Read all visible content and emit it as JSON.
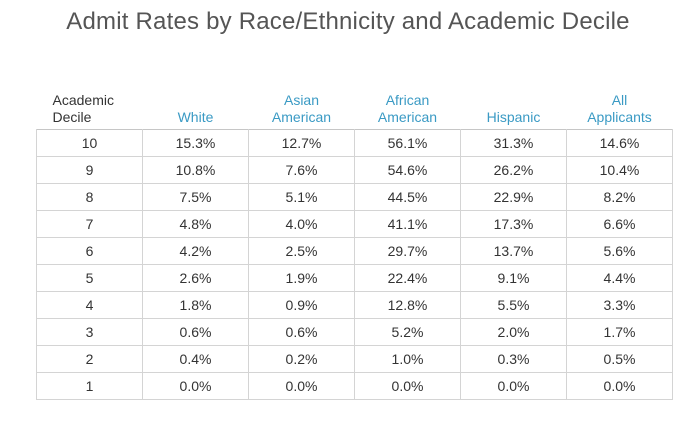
{
  "title": "Admit Rates by Race/Ethnicity and Academic Decile",
  "chart_data": {
    "type": "table",
    "title": "Admit Rates by Race/Ethnicity and Academic Decile",
    "columns": [
      {
        "line1": "Academic",
        "line2": "Decile"
      },
      {
        "line1": "",
        "line2": "White"
      },
      {
        "line1": "Asian",
        "line2": "American"
      },
      {
        "line1": "African",
        "line2": "American"
      },
      {
        "line1": "",
        "line2": "Hispanic"
      },
      {
        "line1": "All",
        "line2": "Applicants"
      }
    ],
    "rows": [
      [
        "10",
        "15.3%",
        "12.7%",
        "56.1%",
        "31.3%",
        "14.6%"
      ],
      [
        "9",
        "10.8%",
        "7.6%",
        "54.6%",
        "26.2%",
        "10.4%"
      ],
      [
        "8",
        "7.5%",
        "5.1%",
        "44.5%",
        "22.9%",
        "8.2%"
      ],
      [
        "7",
        "4.8%",
        "4.0%",
        "41.1%",
        "17.3%",
        "6.6%"
      ],
      [
        "6",
        "4.2%",
        "2.5%",
        "29.7%",
        "13.7%",
        "5.6%"
      ],
      [
        "5",
        "2.6%",
        "1.9%",
        "22.4%",
        "9.1%",
        "4.4%"
      ],
      [
        "4",
        "1.8%",
        "0.9%",
        "12.8%",
        "5.5%",
        "3.3%"
      ],
      [
        "3",
        "0.6%",
        "0.6%",
        "5.2%",
        "2.0%",
        "1.7%"
      ],
      [
        "2",
        "0.4%",
        "0.2%",
        "1.0%",
        "0.3%",
        "0.5%"
      ],
      [
        "1",
        "0.0%",
        "0.0%",
        "0.0%",
        "0.0%",
        "0.0%"
      ]
    ]
  },
  "colors": {
    "header_text": "#3a9ac4",
    "decile_header_text": "#333333",
    "cell_border": "#d4d4d4",
    "title_text": "#555555"
  }
}
